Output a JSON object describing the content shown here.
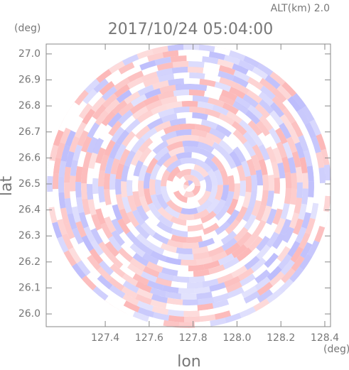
{
  "chart_data": {
    "type": "radar-ppi",
    "title": "2017/10/24 05:04:00",
    "subtitle": "ALT(km) 2.0",
    "x_label": "lon",
    "y_label": "lat",
    "x_unit": "(deg)",
    "y_unit": "(deg)",
    "xlim": [
      127.131,
      128.426
    ],
    "ylim": [
      25.951,
      27.038
    ],
    "xticks": [
      127.4,
      127.6,
      127.8,
      {
        "value": 128,
        "label": "128.0"
      },
      128.2,
      128.4
    ],
    "yticks": [
      {
        "value": 26,
        "label": "26.0"
      },
      26.1,
      26.2,
      26.3,
      26.4,
      26.5,
      26.6,
      26.7,
      26.8,
      26.9,
      {
        "value": 27,
        "label": "27.0"
      }
    ]
  }
}
